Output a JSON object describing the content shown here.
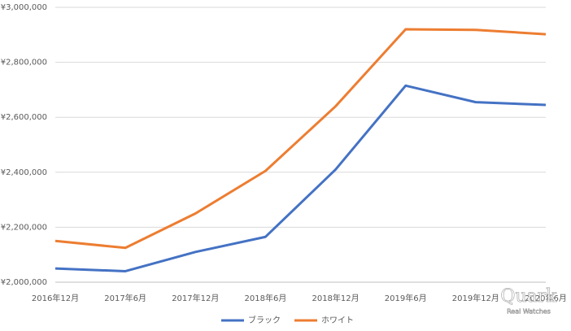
{
  "chart_data": {
    "type": "line",
    "categories": [
      "2016年12月",
      "2017年6月",
      "2017年12月",
      "2018年6月",
      "2018年12月",
      "2019年6月",
      "2019年12月",
      "2020年6月"
    ],
    "series": [
      {
        "name": "ブラック",
        "color": "#4472c4",
        "values": [
          2050000,
          2040000,
          2110000,
          2165000,
          2410000,
          2715000,
          2655000,
          2645000
        ]
      },
      {
        "name": "ホワイト",
        "color": "#ed7d31",
        "values": [
          2150000,
          2125000,
          2250000,
          2405000,
          2640000,
          2920000,
          2918000,
          2902000
        ]
      }
    ],
    "ylim": [
      2000000,
      3000000
    ],
    "yticks": [
      {
        "value": 2000000,
        "label": "¥2,000,000"
      },
      {
        "value": 2200000,
        "label": "¥2,200,000"
      },
      {
        "value": 2400000,
        "label": "¥2,400,000"
      },
      {
        "value": 2600000,
        "label": "¥2,600,000"
      },
      {
        "value": 2800000,
        "label": "¥2,800,000"
      },
      {
        "value": 3000000,
        "label": "¥3,000,000"
      }
    ],
    "grid": true,
    "legend": "bottom",
    "watermark": {
      "brand": "Quark",
      "tagline": "Real Watches"
    }
  }
}
